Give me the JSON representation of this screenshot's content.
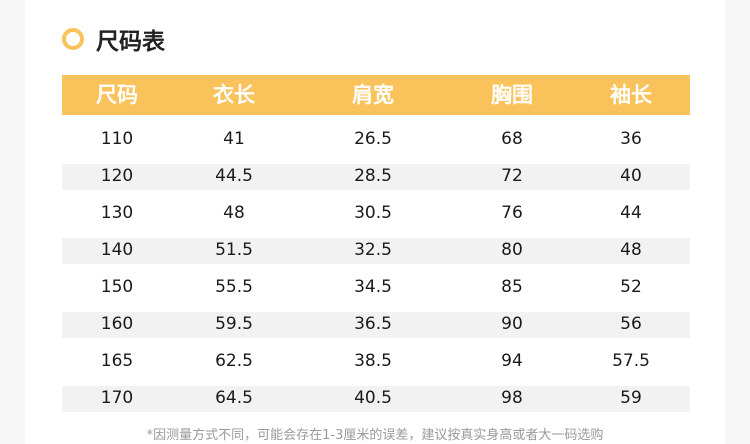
{
  "title": "尺码表",
  "accent_color": "#f9c25a",
  "headers": [
    "尺码",
    "衣长",
    "肩宽",
    "胸围",
    "袖长"
  ],
  "rows": [
    [
      "110",
      "41",
      "26.5",
      "68",
      "36"
    ],
    [
      "120",
      "44.5",
      "28.5",
      "72",
      "40"
    ],
    [
      "130",
      "48",
      "30.5",
      "76",
      "44"
    ],
    [
      "140",
      "51.5",
      "32.5",
      "80",
      "48"
    ],
    [
      "150",
      "55.5",
      "34.5",
      "85",
      "52"
    ],
    [
      "160",
      "59.5",
      "36.5",
      "90",
      "56"
    ],
    [
      "165",
      "62.5",
      "38.5",
      "94",
      "57.5"
    ],
    [
      "170",
      "64.5",
      "40.5",
      "98",
      "59"
    ]
  ],
  "note": "*因测量方式不同，可能会存在1-3厘米的误差，建议按真实身高或者大一码选购"
}
